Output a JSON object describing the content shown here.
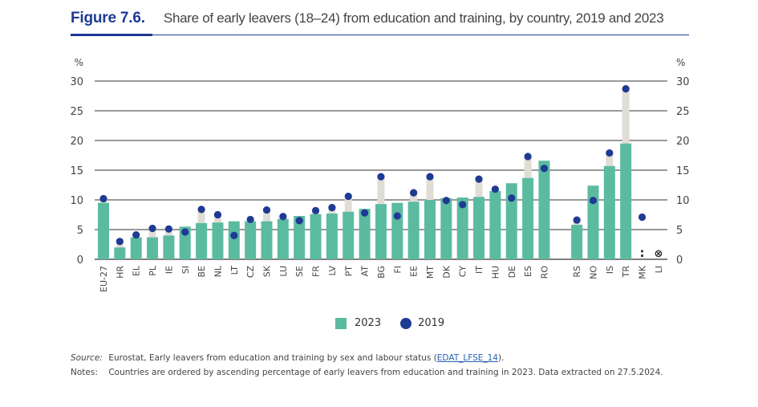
{
  "figure": {
    "label": "Figure 7.6.",
    "title": "Share of early leavers (18–24) from education and training, by country, 2019 and 2023"
  },
  "legend": {
    "items": [
      {
        "label": "2023",
        "marker": "square",
        "color": "#5bbba0"
      },
      {
        "label": "2019",
        "marker": "circle",
        "color": "#1f3a93"
      }
    ]
  },
  "notes": {
    "source_label": "Source:",
    "source_text_before": "Eurostat, Early leavers from education and training by sex and labour status (",
    "source_link": "EDAT_LFSE_14",
    "source_text_after": ").",
    "notes_label": "Notes:",
    "notes_text": "Countries are ordered by ascending percentage of early leavers from education and training in 2023. Data extracted on 27.5.2024."
  },
  "chart_data": {
    "type": "bar",
    "title": "Share of early leavers (18–24) from education and training, by country, 2019 and 2023",
    "xlabel": "",
    "ylabel": "%",
    "ylim": [
      0,
      30
    ],
    "yticks": [
      0,
      5,
      10,
      15,
      20,
      25,
      30
    ],
    "grid": true,
    "legend_position": "bottom",
    "colors": {
      "bar_2023": "#5bbba0",
      "dot_2019": "#1f3a93",
      "gap": "#e0ddd5",
      "grid": "#333333"
    },
    "categories": [
      "EU-27",
      "HR",
      "EL",
      "PL",
      "IE",
      "SI",
      "BE",
      "NL",
      "LT",
      "CZ",
      "SK",
      "LU",
      "SE",
      "FR",
      "LV",
      "PT",
      "AT",
      "BG",
      "FI",
      "EE",
      "MT",
      "DK",
      "CY",
      "IT",
      "HU",
      "DE",
      "ES",
      "RO",
      "",
      "RS",
      "NO",
      "IS",
      "TR",
      "MK",
      "LI"
    ],
    "series": [
      {
        "name": "2023",
        "kind": "bar",
        "values": [
          9.5,
          2.0,
          3.7,
          3.7,
          4.0,
          5.5,
          6.1,
          6.2,
          6.4,
          6.4,
          6.4,
          6.8,
          7.3,
          7.6,
          7.7,
          8.0,
          8.5,
          9.3,
          9.5,
          9.7,
          10.0,
          10.3,
          10.4,
          10.5,
          11.5,
          12.8,
          13.7,
          16.6,
          null,
          5.8,
          12.4,
          15.7,
          19.5,
          null,
          null
        ]
      },
      {
        "name": "2019",
        "kind": "dot",
        "values": [
          10.2,
          3.0,
          4.1,
          5.2,
          5.1,
          4.6,
          8.4,
          7.5,
          4.0,
          6.7,
          8.3,
          7.2,
          6.5,
          8.2,
          8.7,
          10.6,
          7.8,
          13.9,
          7.3,
          11.2,
          13.9,
          9.9,
          9.2,
          13.5,
          11.8,
          10.3,
          17.3,
          15.3,
          null,
          6.6,
          9.9,
          17.9,
          28.7,
          7.1,
          null
        ]
      }
    ],
    "special_markers": [
      {
        "category": "MK",
        "symbol": ":",
        "meaning": "2023 not available"
      },
      {
        "category": "LI",
        "symbol": "⊗",
        "meaning": "not available"
      }
    ]
  }
}
